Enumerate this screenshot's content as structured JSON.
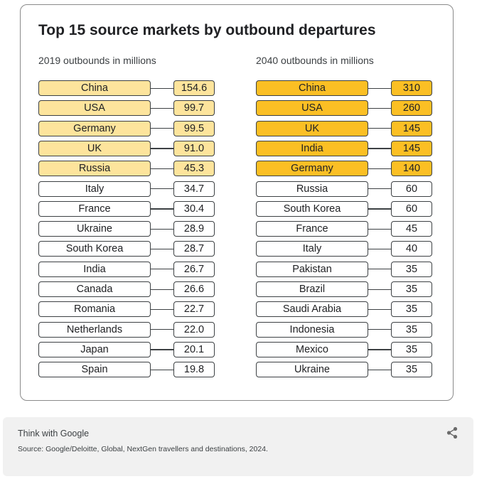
{
  "title": "Top 15 source markets by outbound departures",
  "colors": {
    "highlight_2019": "#fde49c",
    "highlight_2040": "#fbbf24",
    "border": "#3c4043",
    "footer_bg": "#f1f1f1"
  },
  "chart_data": [
    {
      "type": "table",
      "title": "2019 outbounds in millions",
      "unit": "millions",
      "highlighted_top": 5,
      "categories": [
        "China",
        "USA",
        "Germany",
        "UK",
        "Russia",
        "Italy",
        "France",
        "Ukraine",
        "South Korea",
        "India",
        "Canada",
        "Romania",
        "Netherlands",
        "Japan",
        "Spain"
      ],
      "values": [
        "154.6",
        "99.7",
        "99.5",
        "91.0",
        "45.3",
        "34.7",
        "30.4",
        "28.9",
        "28.7",
        "26.7",
        "26.6",
        "22.7",
        "22.0",
        "20.1",
        "19.8"
      ]
    },
    {
      "type": "table",
      "title": "2040 outbounds in millions",
      "unit": "millions",
      "highlighted_top": 5,
      "categories": [
        "China",
        "USA",
        "UK",
        "India",
        "Germany",
        "Russia",
        "South Korea",
        "France",
        "Italy",
        "Pakistan",
        "Brazil",
        "Saudi Arabia",
        "Indonesia",
        "Mexico",
        "Ukraine"
      ],
      "values": [
        "310",
        "260",
        "145",
        "145",
        "140",
        "60",
        "60",
        "45",
        "40",
        "35",
        "35",
        "35",
        "35",
        "35",
        "35"
      ]
    }
  ],
  "footer": {
    "brand": "Think with Google",
    "source": "Source: Google/Deloitte, Global, NextGen travellers and destinations, 2024.",
    "share_icon": "share-icon"
  }
}
